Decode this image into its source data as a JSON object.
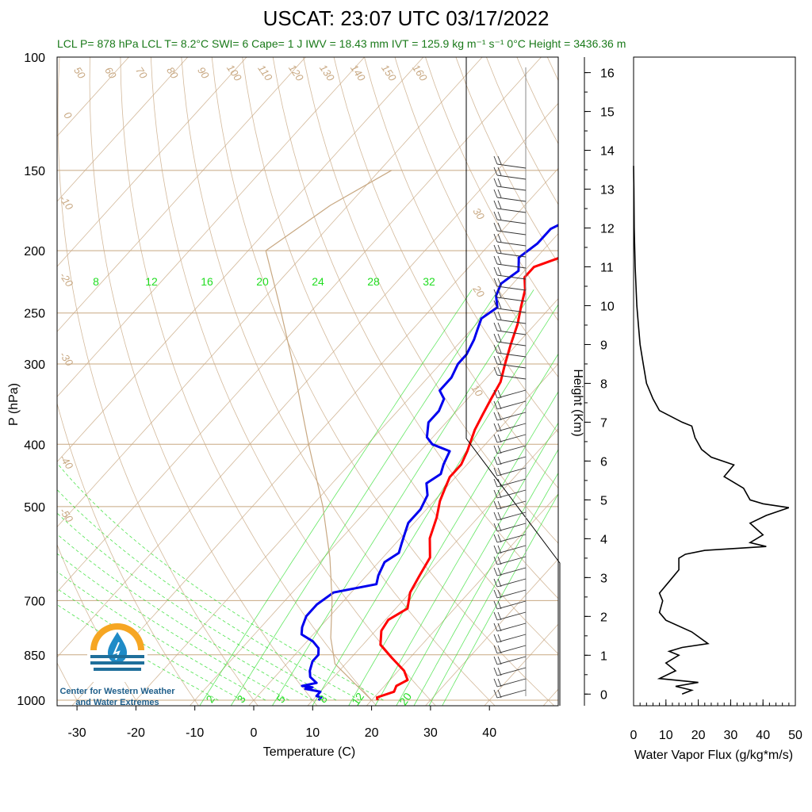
{
  "title": "USCAT: 23:07 UTC 03/17/2022",
  "subtitle": "LCL P= 878 hPa  LCL T= 8.2°C  SWI= 6  Cape= 1 J  IWV = 18.43 mm  IVT = 125.9 kg m⁻¹ s⁻¹  0°C Height = 3436.36 m",
  "logo": {
    "line1": "Center for Western Weather",
    "line2": "and Water Extremes"
  },
  "colors": {
    "temperature": "#ff0000",
    "dewpoint": "#0000ee",
    "adiabat": "#c8a882",
    "mixing": "#22dd22",
    "flux": "#000000"
  },
  "chart_data": [
    {
      "type": "line",
      "xlabel": "Temperature (C)",
      "ylabel": "P (hPa)",
      "x_ticks": [
        -30,
        -20,
        -10,
        0,
        10,
        20,
        30,
        40
      ],
      "p_ticks": [
        100,
        150,
        200,
        250,
        300,
        400,
        500,
        700,
        850,
        1000
      ],
      "isotherm_labels": [
        "-50",
        "-40",
        "-30",
        "-20",
        "-10",
        "0",
        "10",
        "20",
        "30"
      ],
      "dry_adiabat_labels": [
        "50",
        "60",
        "70",
        "80",
        "90",
        "100",
        "110",
        "120",
        "130",
        "140",
        "150",
        "160"
      ],
      "mixing_ratio_labels": [
        "8",
        "12",
        "16",
        "20",
        "24",
        "28",
        "32"
      ],
      "mixing_ratio_labels_low": [
        "2",
        "3",
        "5",
        "8",
        "12",
        "20"
      ],
      "series": [
        {
          "name": "temperature",
          "points": [
            [
              21,
              1000
            ],
            [
              20.5,
              990
            ],
            [
              22.5,
              970
            ],
            [
              22,
              950
            ],
            [
              23,
              930
            ],
            [
              21,
              900
            ],
            [
              17,
              860
            ],
            [
              13,
              820
            ],
            [
              11,
              780
            ],
            [
              10.5,
              750
            ],
            [
              12,
              720
            ],
            [
              10,
              680
            ],
            [
              9,
              640
            ],
            [
              8,
              600
            ],
            [
              5,
              560
            ],
            [
              3,
              520
            ],
            [
              1,
              490
            ],
            [
              0,
              470
            ],
            [
              -1,
              450
            ],
            [
              -1,
              430
            ],
            [
              -2,
              410
            ],
            [
              -4,
              380
            ],
            [
              -5,
              360
            ],
            [
              -6,
              340
            ],
            [
              -7,
              320
            ],
            [
              -9,
              300
            ],
            [
              -11,
              280
            ],
            [
              -13,
              260
            ],
            [
              -15,
              245
            ],
            [
              -17,
              230
            ],
            [
              -19,
              220
            ],
            [
              -19,
              212
            ],
            [
              -16,
              205
            ],
            [
              -16,
              198
            ],
            [
              -14,
              192
            ],
            [
              -10,
              188
            ],
            [
              -8,
              184
            ],
            [
              -5,
              178
            ],
            [
              -4,
              172
            ],
            [
              -3,
              165
            ],
            [
              -2,
              158
            ],
            [
              -1,
              152
            ]
          ]
        },
        {
          "name": "dewpoint",
          "points": [
            [
              11,
              1000
            ],
            [
              11,
              990
            ],
            [
              10,
              985
            ],
            [
              10,
              970
            ],
            [
              7,
              960
            ],
            [
              8,
              955
            ],
            [
              6,
              950
            ],
            [
              8,
              940
            ],
            [
              6,
              920
            ],
            [
              5,
              900
            ],
            [
              4,
              870
            ],
            [
              4,
              850
            ],
            [
              3,
              830
            ],
            [
              1,
              810
            ],
            [
              -2,
              790
            ],
            [
              -3,
              770
            ],
            [
              -4,
              740
            ],
            [
              -4,
              710
            ],
            [
              -3,
              680
            ],
            [
              3,
              660
            ],
            [
              2,
              640
            ],
            [
              1,
              610
            ],
            [
              2,
              590
            ],
            [
              1,
              570
            ],
            [
              0,
              550
            ],
            [
              -1,
              530
            ],
            [
              -1,
              505
            ],
            [
              -2,
              480
            ],
            [
              -4,
              460
            ],
            [
              -3,
              445
            ],
            [
              -4,
              430
            ],
            [
              -5,
              410
            ],
            [
              -9,
              400
            ],
            [
              -11,
              390
            ],
            [
              -13,
              370
            ],
            [
              -13,
              355
            ],
            [
              -14,
              340
            ],
            [
              -16,
              330
            ],
            [
              -16,
              315
            ],
            [
              -17,
              300
            ],
            [
              -17,
              290
            ],
            [
              -18,
              275
            ],
            [
              -19,
              265
            ],
            [
              -20,
              255
            ],
            [
              -19,
              245
            ],
            [
              -21,
              235
            ],
            [
              -22,
              225
            ],
            [
              -21,
              215
            ],
            [
              -23,
              205
            ],
            [
              -22,
              195
            ],
            [
              -22,
              185
            ],
            [
              -20,
              178
            ],
            [
              -19,
              172
            ],
            [
              -19,
              165
            ],
            [
              -18,
              158
            ],
            [
              -16,
              152
            ]
          ]
        },
        {
          "name": "parcel",
          "points": [
            [
              20,
              1000
            ],
            [
              8.2,
              878
            ],
            [
              3.5,
              800
            ],
            [
              -2,
              700
            ],
            [
              -9,
              600
            ],
            [
              -18,
              500
            ],
            [
              -30,
              400
            ],
            [
              -45,
              300
            ],
            [
              -57,
              240
            ],
            [
              -67,
              200
            ],
            [
              -63,
              170
            ],
            [
              -58,
              150
            ]
          ]
        }
      ]
    },
    {
      "type": "line",
      "xlabel": "Water Vapor Flux (g/kg*m/s)",
      "ylabel": "Height (Km)",
      "xlim": [
        0,
        50
      ],
      "ylim": [
        -0.3,
        16.4
      ],
      "x_ticks": [
        0,
        10,
        20,
        30,
        40,
        50
      ],
      "y_ticks": [
        0,
        1,
        2,
        3,
        4,
        5,
        6,
        7,
        8,
        9,
        10,
        11,
        12,
        13,
        14,
        15,
        16
      ],
      "series": [
        {
          "name": "flux",
          "points": [
            [
              15,
              0.0
            ],
            [
              18,
              0.1
            ],
            [
              13,
              0.2
            ],
            [
              20,
              0.3
            ],
            [
              8,
              0.4
            ],
            [
              13,
              0.6
            ],
            [
              10,
              0.8
            ],
            [
              14,
              1.0
            ],
            [
              11,
              1.1
            ],
            [
              15,
              1.2
            ],
            [
              23,
              1.3
            ],
            [
              18,
              1.6
            ],
            [
              10,
              1.9
            ],
            [
              8,
              2.1
            ],
            [
              9,
              2.4
            ],
            [
              8,
              2.6
            ],
            [
              11,
              2.9
            ],
            [
              14,
              3.2
            ],
            [
              14,
              3.5
            ],
            [
              16,
              3.6
            ],
            [
              22,
              3.7
            ],
            [
              41,
              3.8
            ],
            [
              36,
              3.9
            ],
            [
              40,
              4.1
            ],
            [
              36,
              4.4
            ],
            [
              41,
              4.6
            ],
            [
              48,
              4.8
            ],
            [
              40,
              4.9
            ],
            [
              36,
              5.0
            ],
            [
              34,
              5.3
            ],
            [
              30,
              5.5
            ],
            [
              28,
              5.6
            ],
            [
              31,
              5.9
            ],
            [
              24,
              6.1
            ],
            [
              21,
              6.3
            ],
            [
              19,
              6.6
            ],
            [
              18,
              6.9
            ],
            [
              15,
              7.0
            ],
            [
              8,
              7.3
            ],
            [
              6,
              7.6
            ],
            [
              4,
              8.0
            ],
            [
              3,
              8.5
            ],
            [
              2,
              9.0
            ],
            [
              1.5,
              9.5
            ],
            [
              1,
              10.0
            ],
            [
              0.5,
              11.0
            ],
            [
              0.2,
              12.0
            ],
            [
              0.1,
              13.0
            ],
            [
              0,
              13.6
            ]
          ]
        }
      ]
    }
  ]
}
